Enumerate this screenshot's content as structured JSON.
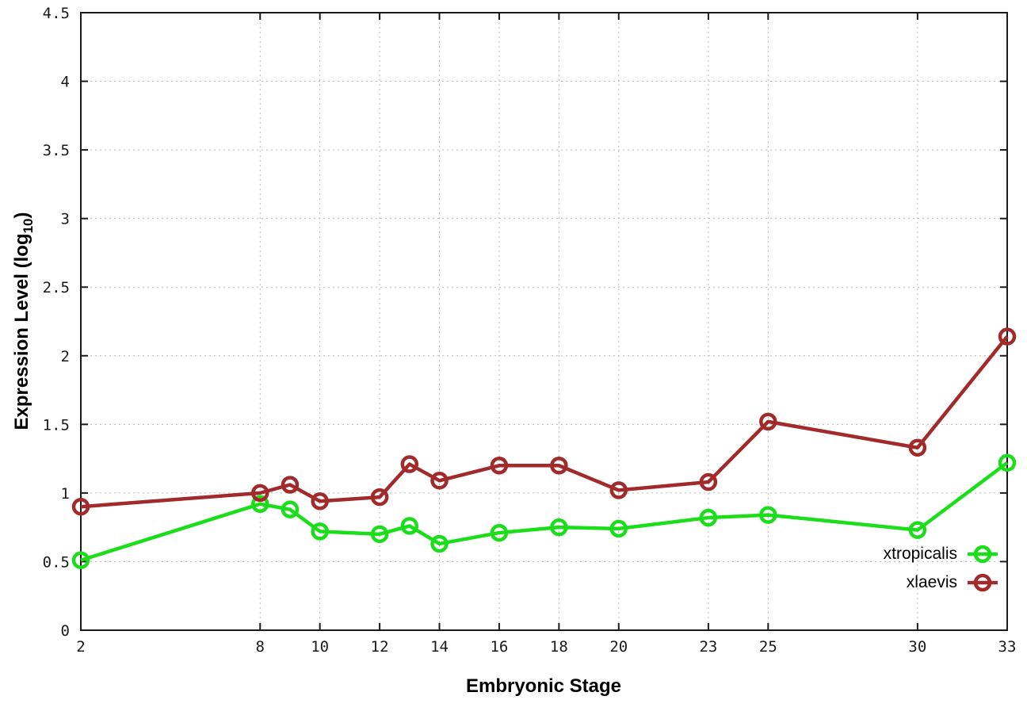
{
  "chart_data": {
    "type": "line",
    "title": "",
    "xlabel": "Embryonic Stage",
    "ylabel": {
      "prefix": "Expression Level (log",
      "sub": "10",
      "suffix": ")"
    },
    "xlim": [
      2,
      33
    ],
    "ylim": [
      0,
      4.5
    ],
    "grid": true,
    "legend_position": "bottom-right",
    "x_ticks": [
      2,
      8,
      10,
      12,
      14,
      16,
      18,
      20,
      23,
      25,
      30,
      33
    ],
    "y_ticks": [
      0,
      0.5,
      1,
      1.5,
      2,
      2.5,
      3,
      3.5,
      4,
      4.5
    ],
    "x": [
      2,
      8,
      9,
      10,
      12,
      13,
      14,
      16,
      18,
      20,
      23,
      25,
      30,
      33
    ],
    "series": [
      {
        "name": "xtropicalis",
        "color": "#1ade1a",
        "values": [
          0.51,
          0.92,
          0.88,
          0.72,
          0.7,
          0.76,
          0.63,
          0.71,
          0.75,
          0.74,
          0.82,
          0.84,
          0.73,
          1.22
        ]
      },
      {
        "name": "xlaevis",
        "color": "#a22a2a",
        "values": [
          0.9,
          1.0,
          1.06,
          0.94,
          0.97,
          1.21,
          1.09,
          1.2,
          1.2,
          1.02,
          1.08,
          1.52,
          1.33,
          2.14
        ]
      }
    ],
    "style": {
      "grid_color": "#bbbbbb",
      "axis_color": "#1a1a1a",
      "tick_label_color": "#1a1a1a"
    }
  }
}
